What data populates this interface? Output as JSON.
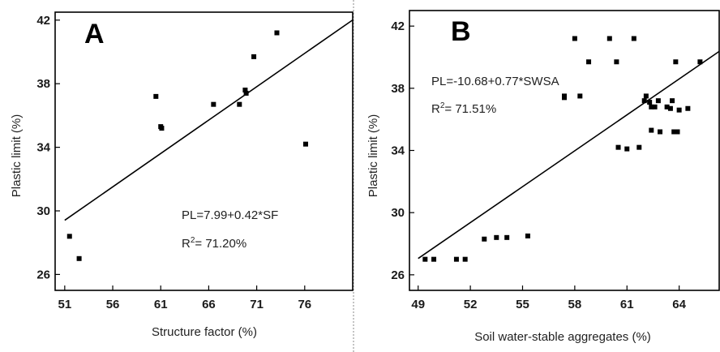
{
  "chart_data": [
    {
      "type": "scatter",
      "panel_label": "A",
      "xlabel": "Structure factor (%)",
      "ylabel": "Plastic limit (%)",
      "xlim": [
        50,
        81
      ],
      "ylim": [
        25,
        42.5
      ],
      "xticks": [
        51,
        56,
        61,
        66,
        71,
        76
      ],
      "yticks": [
        26,
        30,
        34,
        38,
        42
      ],
      "grid": false,
      "points": [
        {
          "x": 51.5,
          "y": 28.4
        },
        {
          "x": 52.5,
          "y": 27.0
        },
        {
          "x": 60.5,
          "y": 37.2
        },
        {
          "x": 61.0,
          "y": 35.3
        },
        {
          "x": 61.1,
          "y": 35.2
        },
        {
          "x": 66.5,
          "y": 36.7
        },
        {
          "x": 69.2,
          "y": 36.7
        },
        {
          "x": 69.8,
          "y": 37.6
        },
        {
          "x": 69.9,
          "y": 37.4
        },
        {
          "x": 70.7,
          "y": 39.7
        },
        {
          "x": 73.1,
          "y": 41.2
        },
        {
          "x": 76.1,
          "y": 34.2
        }
      ],
      "fit_line": {
        "intercept": 7.99,
        "slope": 0.42,
        "x_range": [
          51,
          81
        ]
      },
      "equation": "PL=7.99+0.42*SF",
      "r2_prefix": "R",
      "r2_superscript": "2",
      "r2_value": "= 71.20%"
    },
    {
      "type": "scatter",
      "panel_label": "B",
      "xlabel": "Soil water-stable aggregates (%)",
      "ylabel": "Plastic limit (%)",
      "xlim": [
        48.5,
        66.3
      ],
      "ylim": [
        25,
        43
      ],
      "xticks": [
        49,
        52,
        55,
        58,
        61,
        64
      ],
      "yticks": [
        26,
        30,
        34,
        38,
        42
      ],
      "grid": false,
      "points": [
        {
          "x": 49.4,
          "y": 27.0
        },
        {
          "x": 49.9,
          "y": 27.0
        },
        {
          "x": 51.2,
          "y": 27.0
        },
        {
          "x": 51.7,
          "y": 27.0
        },
        {
          "x": 52.8,
          "y": 28.3
        },
        {
          "x": 53.5,
          "y": 28.4
        },
        {
          "x": 54.1,
          "y": 28.4
        },
        {
          "x": 55.3,
          "y": 28.5
        },
        {
          "x": 57.4,
          "y": 37.5
        },
        {
          "x": 57.4,
          "y": 37.4
        },
        {
          "x": 58.3,
          "y": 37.5
        },
        {
          "x": 58.0,
          "y": 41.2
        },
        {
          "x": 58.8,
          "y": 39.7
        },
        {
          "x": 60.0,
          "y": 41.2
        },
        {
          "x": 60.4,
          "y": 39.7
        },
        {
          "x": 61.4,
          "y": 41.2
        },
        {
          "x": 60.5,
          "y": 34.2
        },
        {
          "x": 61.0,
          "y": 34.1
        },
        {
          "x": 61.7,
          "y": 34.2
        },
        {
          "x": 62.0,
          "y": 37.2
        },
        {
          "x": 62.1,
          "y": 37.5
        },
        {
          "x": 62.4,
          "y": 36.8
        },
        {
          "x": 62.6,
          "y": 36.8
        },
        {
          "x": 62.3,
          "y": 37.1
        },
        {
          "x": 62.8,
          "y": 37.2
        },
        {
          "x": 62.4,
          "y": 35.3
        },
        {
          "x": 62.9,
          "y": 35.2
        },
        {
          "x": 63.3,
          "y": 36.8
        },
        {
          "x": 63.6,
          "y": 37.2
        },
        {
          "x": 63.5,
          "y": 36.7
        },
        {
          "x": 63.7,
          "y": 35.2
        },
        {
          "x": 63.9,
          "y": 35.2
        },
        {
          "x": 64.0,
          "y": 36.6
        },
        {
          "x": 64.5,
          "y": 36.7
        },
        {
          "x": 63.8,
          "y": 39.7
        },
        {
          "x": 65.2,
          "y": 39.7
        }
      ],
      "fit_line": {
        "intercept": -10.68,
        "slope": 0.77,
        "x_range": [
          49,
          66.3
        ]
      },
      "equation": "PL=-10.68+0.77*SWSA",
      "r2_prefix": "R",
      "r2_superscript": "2",
      "r2_value": "= 71.51%"
    }
  ]
}
